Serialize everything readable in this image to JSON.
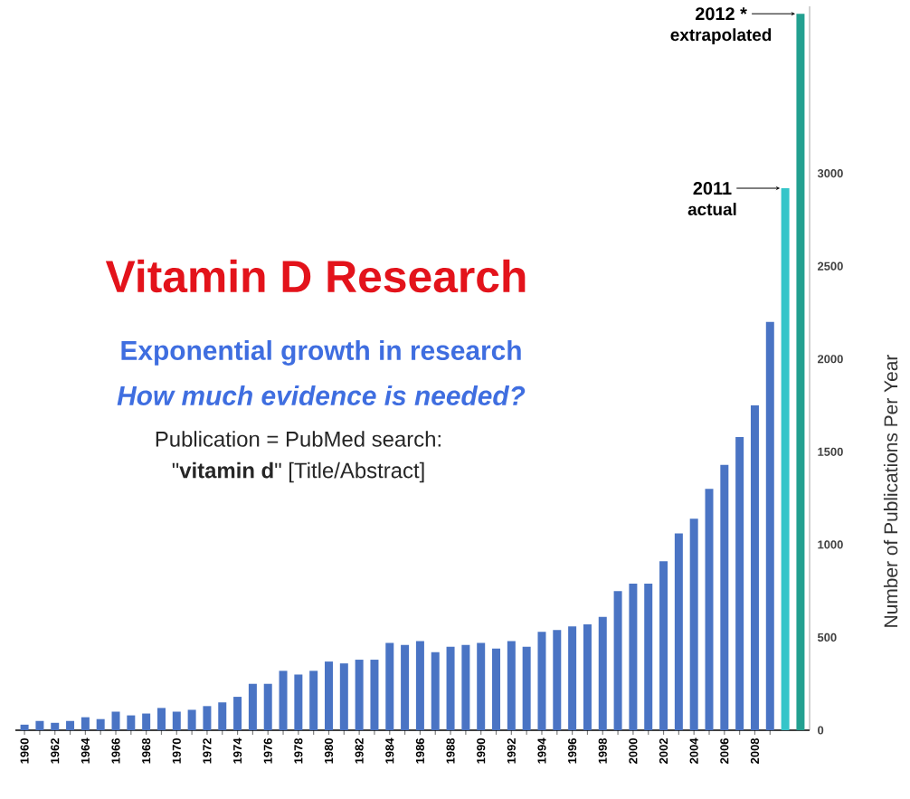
{
  "chart_data": {
    "type": "bar",
    "title": "Vitamin D Research",
    "subtitle": "Exponential growth in research",
    "ylabel": "Number of Publications Per Year",
    "categories": [
      "1960",
      null,
      "1962",
      null,
      "1964",
      null,
      "1966",
      null,
      "1968",
      null,
      "1970",
      null,
      "1972",
      null,
      "1974",
      null,
      "1976",
      null,
      "1978",
      null,
      "1980",
      null,
      "1982",
      null,
      "1984",
      null,
      "1986",
      null,
      "1988",
      null,
      "1990",
      null,
      "1992",
      null,
      "1994",
      null,
      "1996",
      null,
      "1998",
      null,
      "2000",
      null,
      "2002",
      null,
      "2004",
      null,
      "2006",
      null,
      "2008",
      null,
      null,
      null
    ],
    "values": [
      30,
      50,
      40,
      50,
      70,
      60,
      100,
      80,
      90,
      120,
      100,
      110,
      130,
      150,
      180,
      250,
      250,
      320,
      300,
      320,
      370,
      360,
      380,
      380,
      470,
      460,
      480,
      420,
      450,
      460,
      470,
      440,
      480,
      450,
      530,
      540,
      560,
      570,
      610,
      750,
      790,
      790,
      910,
      1060,
      1140,
      1300,
      1430,
      1580,
      1750,
      2200,
      2920,
      3860
    ],
    "colors": [
      "#4a74c4",
      "#4a74c4",
      "#4a74c4",
      "#4a74c4",
      "#4a74c4",
      "#4a74c4",
      "#4a74c4",
      "#4a74c4",
      "#4a74c4",
      "#4a74c4",
      "#4a74c4",
      "#4a74c4",
      "#4a74c4",
      "#4a74c4",
      "#4a74c4",
      "#4a74c4",
      "#4a74c4",
      "#4a74c4",
      "#4a74c4",
      "#4a74c4",
      "#4a74c4",
      "#4a74c4",
      "#4a74c4",
      "#4a74c4",
      "#4a74c4",
      "#4a74c4",
      "#4a74c4",
      "#4a74c4",
      "#4a74c4",
      "#4a74c4",
      "#4a74c4",
      "#4a74c4",
      "#4a74c4",
      "#4a74c4",
      "#4a74c4",
      "#4a74c4",
      "#4a74c4",
      "#4a74c4",
      "#4a74c4",
      "#4a74c4",
      "#4a74c4",
      "#4a74c4",
      "#4a74c4",
      "#4a74c4",
      "#4a74c4",
      "#4a74c4",
      "#4a74c4",
      "#4a74c4",
      "#4a74c4",
      "#4a74c4",
      "#35c5c9",
      "#23a090"
    ],
    "ylim": [
      0,
      3900
    ],
    "yticks": [
      0,
      500,
      1000,
      1500,
      2000,
      2500,
      3000
    ],
    "annotations": [
      "How much evidence is needed?",
      "Publication = PubMed search:",
      "\"**vitamin d**\" [Title/Abstract]",
      "2011",
      "actual",
      "2012 *",
      "extrapolated"
    ]
  }
}
